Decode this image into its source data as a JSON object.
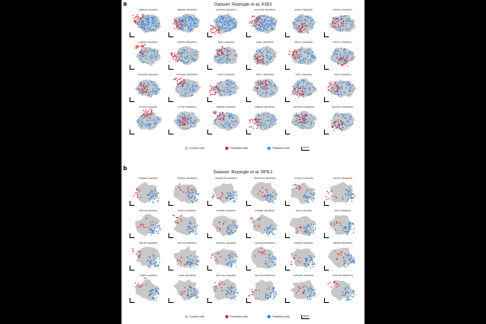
{
  "panels": [
    {
      "letter": "a",
      "title": "Dataset: Replogle et al. K562",
      "cells": [
        "MED25 (GEARS)",
        "MED25 (MORPH)",
        "SUPT5H (GEARS)",
        "SUPT5H (MORPH)",
        "RPS11 (GEARS)",
        "RPS11 (MORPH)",
        "HSPA9 (GEARS)",
        "HSPA9 (MORPH)",
        "SAE1 (GEARS)",
        "SAE1 (MORPH)",
        "RPL17 (GEARS)",
        "RPL17 (MORPH)",
        "POLR2H (GEARS)",
        "POLR2H (MORPH)",
        "CDK7 (GEARS)",
        "CDK7 (MORPH)",
        "TAF1 (GEARS)",
        "TAF1 (MORPH)",
        "CYFIP (GEARS)",
        "CYFIP (MORPH)",
        "MED30 (GEARS)",
        "MED30 (MORPH)",
        "EXOSC4 (GEARS)",
        "EXOSC4 (MORPH)"
      ],
      "legend": {
        "control": "Control cells",
        "perturbed": "Perturbed cells",
        "predicted": "Predicted cells",
        "umap": "UMAP"
      }
    },
    {
      "letter": "b",
      "title": "Dataset: Replogle et al. RPE1",
      "cells": [
        "PSMA4 (GEARS)",
        "PSMA4 (MORPH)",
        "TRAPPC8 (GEARS)",
        "TRAPPC8 (MORPH)",
        "CNOT1 (GEARS)",
        "CNOT1 (MORPH)",
        "IPO13 (GEARS)",
        "IPO13 (MORPH)",
        "PSMB2 (GEARS)",
        "PSMB2 (MORPH)",
        "NIF4 (GEARS)",
        "NIF4 (MORPH)",
        "RPL35 (GEARS)",
        "RPL35 (MORPH)",
        "NUP160 (GEARS)",
        "NUP160 (MORPH)",
        "PRPF8 (GEARS)",
        "PRPF8 (MORPH)",
        "AARS (GEARS)",
        "AARS (MORPH)",
        "RPL13A (GEARS)",
        "RPL13A (MORPH)",
        "GPKOW (GEARS)",
        "GPKOW (MORPH)"
      ],
      "legend": {
        "control": "Control cells",
        "perturbed": "Perturbed cells",
        "predicted": "Predicted cells",
        "umap": "UMAP"
      }
    }
  ],
  "colors": {
    "control": "#c8c8c8",
    "perturbed": "#e0282e",
    "predicted": "#3a8ee6",
    "predicted_b": "#2f7fd0"
  }
}
